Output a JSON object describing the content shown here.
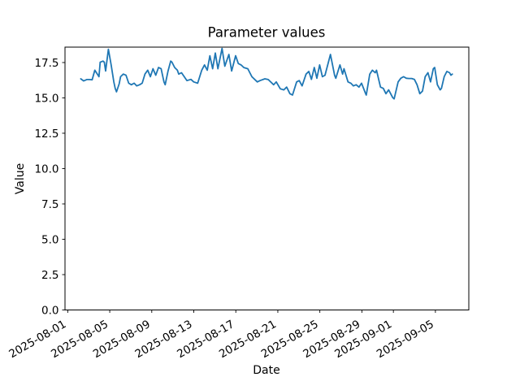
{
  "figure": {
    "background_color": "#ffffff",
    "frame_color": "#000000"
  },
  "chart_data": {
    "type": "line",
    "title": "Parameter values",
    "xlabel": "Date",
    "ylabel": "Value",
    "grid": false,
    "legend": "none",
    "line_color": "#1f77b4",
    "x_unit": "days since 2025-08-01",
    "x_start_date": "2025-08-01",
    "xlim": [
      -0.26,
      38.18
    ],
    "ylim": [
      0,
      18.59
    ],
    "x_ticks": [
      {
        "d": 0,
        "label": "2025-08-01"
      },
      {
        "d": 4,
        "label": "2025-08-05"
      },
      {
        "d": 8,
        "label": "2025-08-09"
      },
      {
        "d": 12,
        "label": "2025-08-13"
      },
      {
        "d": 16,
        "label": "2025-08-17"
      },
      {
        "d": 20,
        "label": "2025-08-21"
      },
      {
        "d": 24,
        "label": "2025-08-25"
      },
      {
        "d": 28,
        "label": "2025-08-29"
      },
      {
        "d": 31,
        "label": "2025-09-01"
      },
      {
        "d": 35,
        "label": "2025-09-05"
      }
    ],
    "y_ticks": [
      {
        "v": 0,
        "label": "0.0"
      },
      {
        "v": 2.5,
        "label": "2.5"
      },
      {
        "v": 5,
        "label": "5.0"
      },
      {
        "v": 7.5,
        "label": "7.5"
      },
      {
        "v": 10,
        "label": "10.0"
      },
      {
        "v": 12.5,
        "label": "12.5"
      },
      {
        "v": 15,
        "label": "15.0"
      },
      {
        "v": 17.5,
        "label": "17.5"
      }
    ],
    "series": [
      {
        "name": "parameter-values",
        "x_days": [
          1.24,
          1.52,
          1.81,
          2.07,
          2.32,
          2.58,
          2.97,
          3.09,
          3.36,
          3.48,
          3.61,
          3.87,
          4.13,
          4.39,
          4.52,
          4.64,
          4.9,
          5.03,
          5.29,
          5.55,
          5.8,
          6.06,
          6.32,
          6.57,
          6.84,
          7.09,
          7.35,
          7.61,
          7.87,
          8.12,
          8.38,
          8.64,
          8.89,
          9.16,
          9.28,
          9.54,
          9.8,
          9.93,
          10.18,
          10.44,
          10.57,
          10.83,
          11.35,
          11.73,
          11.99,
          12.37,
          12.76,
          13.02,
          13.28,
          13.53,
          13.79,
          14.05,
          14.3,
          14.69,
          14.95,
          15.34,
          15.6,
          15.98,
          16.24,
          16.5,
          16.76,
          17.14,
          17.53,
          17.79,
          18.05,
          18.3,
          18.77,
          19.08,
          19.6,
          19.85,
          20.24,
          20.57,
          20.84,
          21.15,
          21.4,
          21.79,
          22.04,
          22.31,
          22.69,
          22.95,
          23.2,
          23.47,
          23.72,
          23.98,
          24.24,
          24.49,
          25.01,
          25.4,
          25.52,
          25.91,
          26.17,
          26.3,
          26.68,
          26.95,
          27.2,
          27.46,
          27.72,
          27.97,
          28.36,
          28.42,
          28.75,
          29.0,
          29.27,
          29.39,
          29.77,
          30.04,
          30.29,
          30.55,
          30.93,
          31.07,
          31.45,
          31.71,
          31.97,
          32.23,
          32.48,
          32.74,
          33.0,
          33.25,
          33.52,
          33.77,
          34.03,
          34.29,
          34.54,
          34.8,
          34.93,
          35.19,
          35.45,
          35.57,
          35.84,
          36.09,
          36.35,
          36.48,
          36.61
        ],
        "values": [
          16.35,
          16.2,
          16.3,
          16.3,
          16.28,
          16.96,
          16.5,
          17.52,
          17.6,
          17.52,
          16.9,
          18.44,
          17.33,
          16.13,
          15.67,
          15.43,
          16.0,
          16.5,
          16.68,
          16.6,
          16.04,
          15.93,
          16.04,
          15.85,
          15.93,
          16.04,
          16.68,
          16.96,
          16.5,
          17.06,
          16.6,
          17.15,
          17.06,
          16.13,
          15.93,
          16.87,
          17.6,
          17.52,
          17.15,
          16.96,
          16.68,
          16.78,
          16.22,
          16.31,
          16.13,
          16.04,
          16.96,
          17.33,
          16.96,
          17.98,
          17.06,
          18.17,
          17.06,
          18.5,
          17.24,
          18.07,
          16.9,
          17.98,
          17.43,
          17.33,
          17.15,
          17.06,
          16.5,
          16.31,
          16.13,
          16.22,
          16.35,
          16.3,
          15.93,
          16.13,
          15.64,
          15.57,
          15.76,
          15.3,
          15.2,
          16.13,
          16.22,
          15.85,
          16.68,
          16.87,
          16.31,
          17.15,
          16.39,
          17.33,
          16.5,
          16.6,
          18.07,
          16.6,
          16.39,
          17.33,
          16.68,
          17.06,
          16.13,
          16.04,
          15.85,
          15.93,
          15.76,
          16.04,
          15.3,
          15.2,
          16.68,
          16.96,
          16.78,
          16.96,
          15.76,
          15.67,
          15.3,
          15.57,
          15.02,
          14.93,
          16.13,
          16.39,
          16.5,
          16.39,
          16.37,
          16.37,
          16.31,
          15.93,
          15.3,
          15.48,
          16.5,
          16.78,
          16.13,
          17.06,
          17.15,
          15.93,
          15.57,
          15.67,
          16.5,
          16.87,
          16.78,
          16.6,
          16.68
        ]
      }
    ]
  }
}
